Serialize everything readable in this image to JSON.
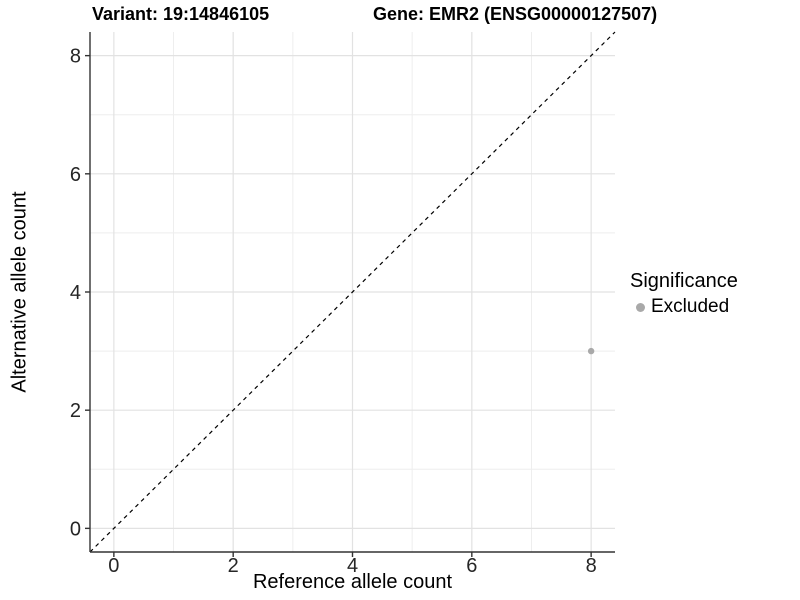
{
  "header": {
    "variant_title": "Variant: 19:14846105",
    "gene_title": "Gene: EMR2 (ENSG00000127507)"
  },
  "chart_data": {
    "type": "scatter",
    "title_left": "Variant: 19:14846105",
    "title_right": "Gene: EMR2 (ENSG00000127507)",
    "xlabel": "Reference allele count",
    "ylabel": "Alternative allele count",
    "xlim": [
      -0.4,
      8.4
    ],
    "ylim": [
      -0.4,
      8.4
    ],
    "x_ticks": [
      0,
      2,
      4,
      6,
      8
    ],
    "y_ticks": [
      0,
      2,
      4,
      6,
      8
    ],
    "x_minor_ticks": [
      1,
      3,
      5,
      7
    ],
    "y_minor_ticks": [
      1,
      3,
      5,
      7
    ],
    "grid": "on",
    "legend_position": "right",
    "reference_line": {
      "type": "identity",
      "style": "dashed",
      "from": [
        -0.4,
        -0.4
      ],
      "to": [
        8.4,
        8.4
      ]
    },
    "series": [
      {
        "name": "Excluded",
        "color": "#a9a9a9",
        "points": [
          [
            8,
            3
          ]
        ]
      }
    ],
    "legend": {
      "title": "Significance",
      "items": [
        {
          "label": "Excluded",
          "color": "#a9a9a9"
        }
      ]
    }
  },
  "colors": {
    "background": "#ffffff",
    "grid_major": "#e2e2e2",
    "grid_minor": "#eeeeee",
    "axis_line": "#333333",
    "tick_text": "#262626",
    "identity_line": "#000000"
  }
}
